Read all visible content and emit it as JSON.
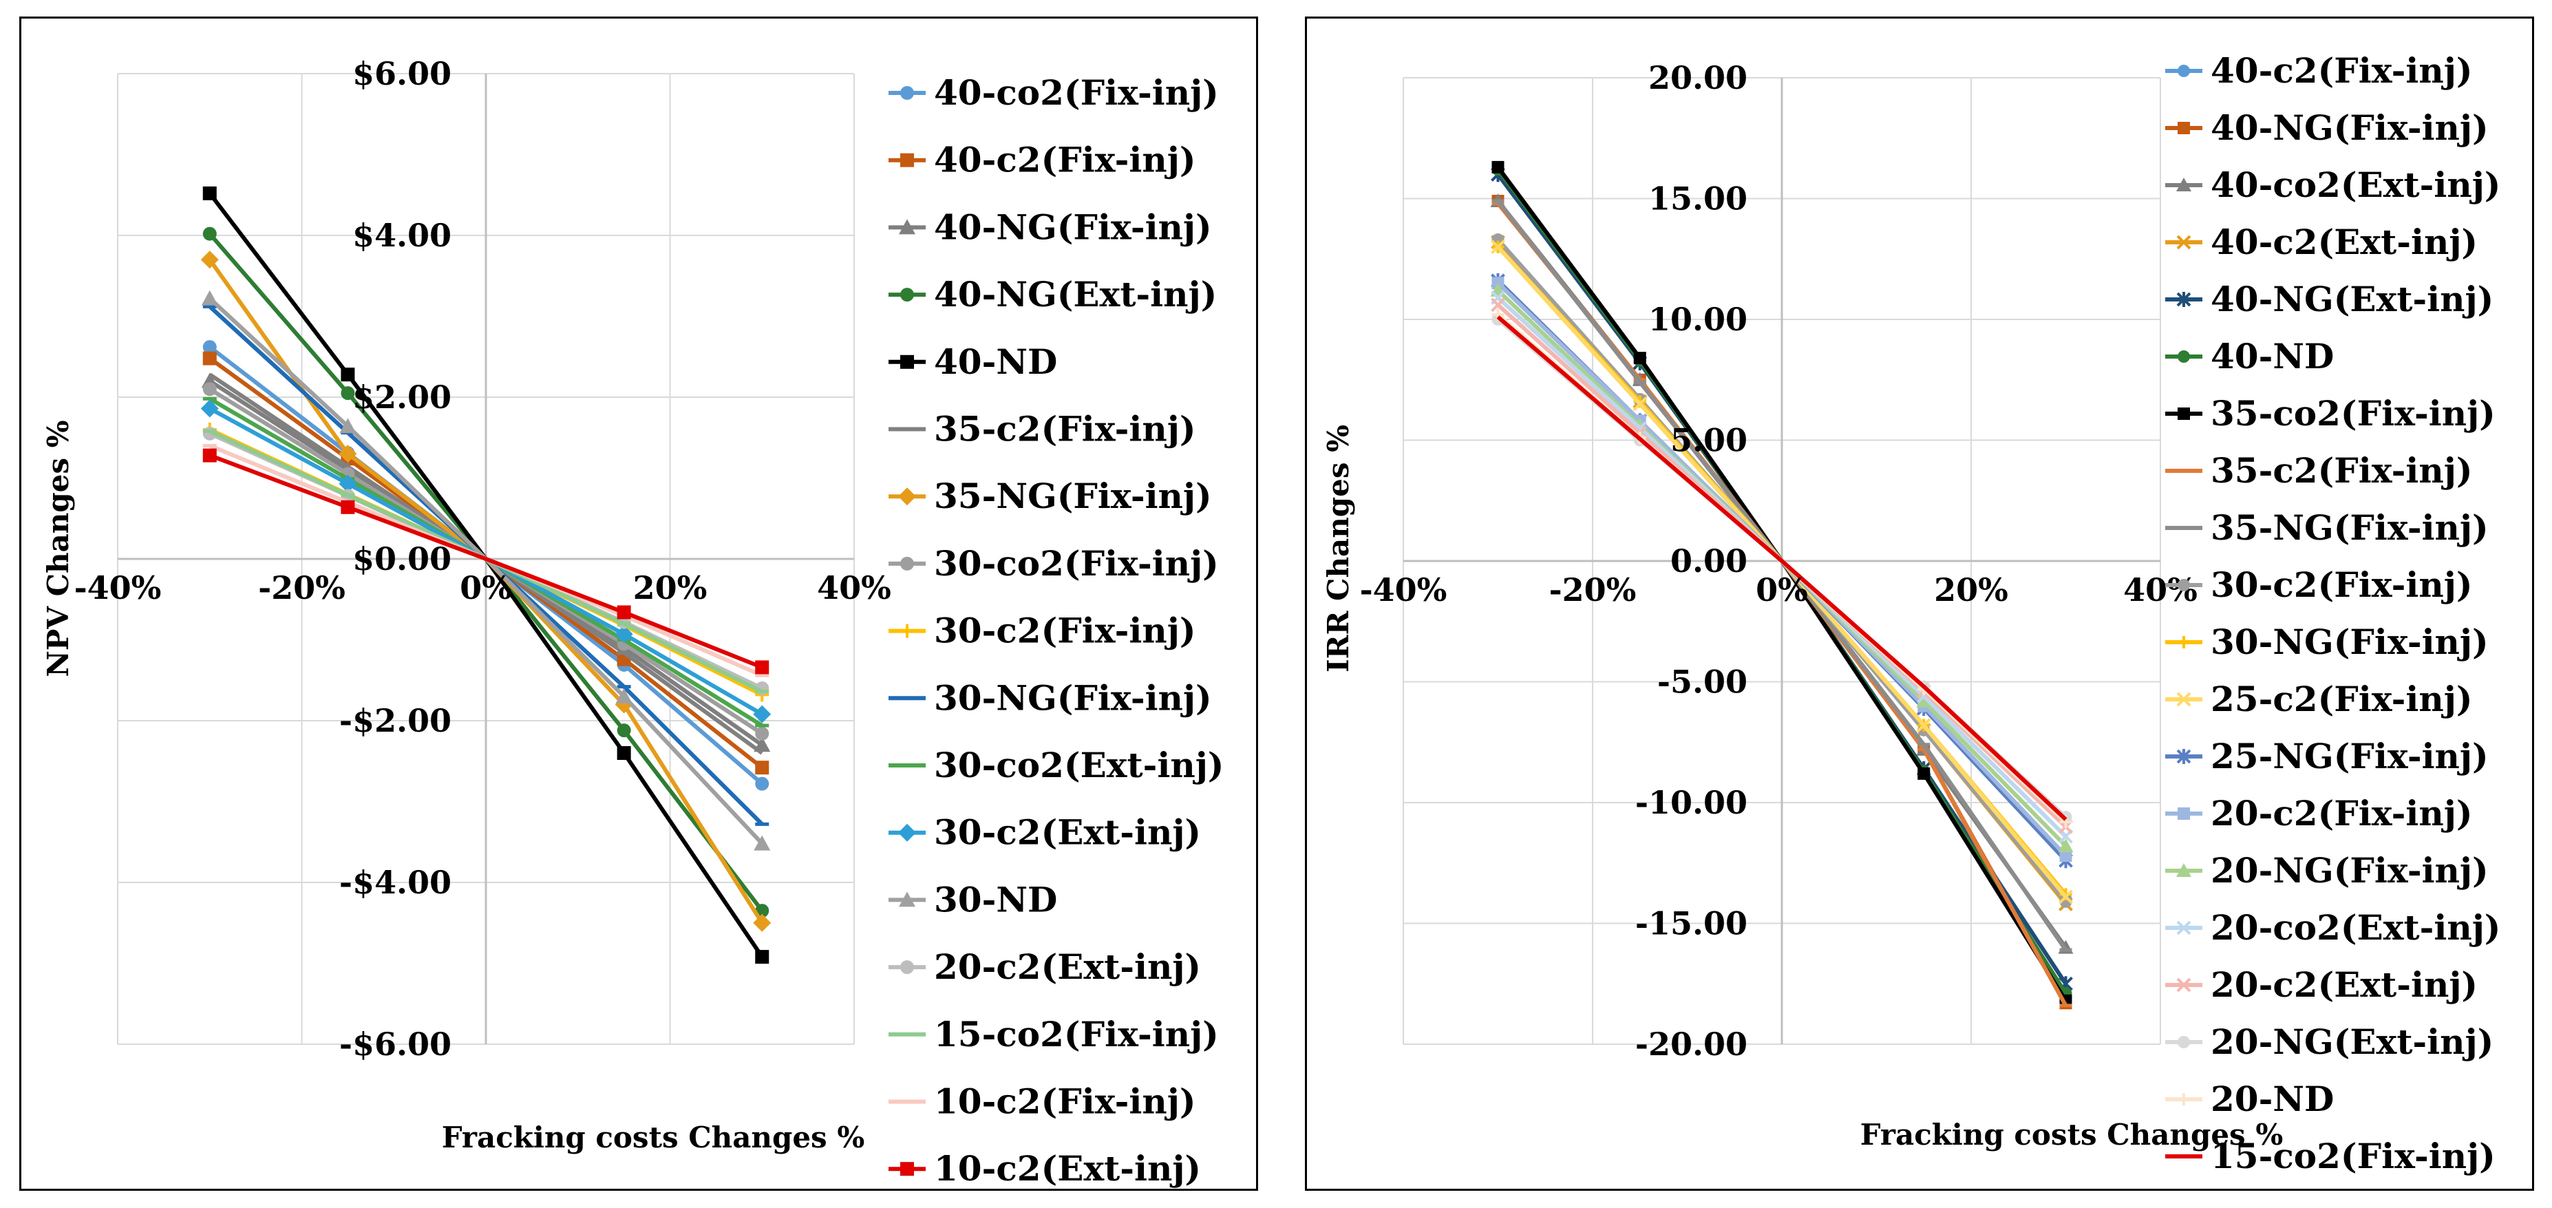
{
  "chart_data": [
    {
      "type": "line",
      "xlabel": "Fracking costs Changes %",
      "ylabel": "NPV Changes %",
      "xlim": [
        -0.4,
        0.4
      ],
      "ylim": [
        -6,
        6
      ],
      "x_ticks": [
        "-40%",
        "-20%",
        "0%",
        "20%",
        "40%"
      ],
      "y_ticks": [
        "$6.00",
        "$4.00",
        "$2.00",
        "$0.00",
        "-$2.00",
        "-$4.00",
        "-$6.00"
      ],
      "grid": true,
      "legend_position": "right",
      "x": [
        -0.3,
        -0.15,
        0,
        0.15,
        0.3
      ],
      "series": [
        {
          "name": "40-co2(Fix-inj)",
          "color": "#5B9BD5",
          "marker": "circle",
          "values": [
            2.62,
            1.31,
            0,
            -1.31,
            -2.78
          ]
        },
        {
          "name": "40-c2(Fix-inj)",
          "color": "#C55A11",
          "marker": "square",
          "values": [
            2.48,
            1.24,
            0,
            -1.24,
            -2.58
          ]
        },
        {
          "name": "40-NG(Fix-inj)",
          "color": "#7F7F7F",
          "marker": "triangle",
          "values": [
            2.2,
            1.1,
            0,
            -1.1,
            -2.3
          ]
        },
        {
          "name": "40-NG(Ext-inj)",
          "color": "#2E7D32",
          "marker": "circle",
          "values": [
            4.02,
            2.05,
            0,
            -2.12,
            -4.35
          ]
        },
        {
          "name": "40-ND",
          "color": "#000000",
          "marker": "square",
          "values": [
            4.52,
            2.28,
            0,
            -2.4,
            -4.92
          ]
        },
        {
          "name": "35-c2(Fix-inj)",
          "color": "#808080",
          "marker": "none",
          "values": [
            2.28,
            1.14,
            0,
            -1.16,
            -2.4
          ]
        },
        {
          "name": "35-NG(Fix-inj)",
          "color": "#E69C1A",
          "marker": "diamond",
          "values": [
            3.7,
            1.3,
            0,
            -1.8,
            -4.5
          ]
        },
        {
          "name": "30-co2(Fix-inj)",
          "color": "#9E9E9E",
          "marker": "circle",
          "values": [
            2.1,
            1.05,
            0,
            -1.05,
            -2.16
          ]
        },
        {
          "name": "30-c2(Fix-inj)",
          "color": "#FFC000",
          "marker": "plus",
          "values": [
            1.6,
            0.8,
            0,
            -0.82,
            -1.68
          ]
        },
        {
          "name": "30-NG(Fix-inj)",
          "color": "#1F6CB5",
          "marker": "dash",
          "values": [
            3.12,
            1.56,
            0,
            -1.58,
            -3.28
          ]
        },
        {
          "name": "30-co2(Ext-inj)",
          "color": "#4CA64C",
          "marker": "dash",
          "values": [
            1.98,
            0.99,
            0,
            -1.0,
            -2.06
          ]
        },
        {
          "name": "30-c2(Ext-inj)",
          "color": "#2E9FD6",
          "marker": "diamond",
          "values": [
            1.86,
            0.93,
            0,
            -0.93,
            -1.92
          ]
        },
        {
          "name": "30-ND",
          "color": "#A0A0A0",
          "marker": "triangle",
          "values": [
            3.22,
            1.64,
            0,
            -1.7,
            -3.52
          ]
        },
        {
          "name": "20-c2(Ext-inj)",
          "color": "#BDBDBD",
          "marker": "circle",
          "values": [
            1.55,
            0.78,
            0,
            -0.78,
            -1.6
          ]
        },
        {
          "name": "15-co2(Fix-inj)",
          "color": "#8FCB8F",
          "marker": "dash",
          "values": [
            1.58,
            0.79,
            0,
            -0.8,
            -1.64
          ]
        },
        {
          "name": "10-c2(Fix-inj)",
          "color": "#F8C9C0",
          "marker": "dash",
          "values": [
            1.4,
            0.7,
            0,
            -0.7,
            -1.44
          ]
        },
        {
          "name": "10-c2(Ext-inj)",
          "color": "#E00000",
          "marker": "square",
          "values": [
            1.28,
            0.64,
            0,
            -0.66,
            -1.34
          ]
        }
      ]
    },
    {
      "type": "line",
      "xlabel": "Fracking costs Changes %",
      "ylabel": "IRR Changes %",
      "xlim": [
        -0.4,
        0.4
      ],
      "ylim": [
        -20,
        20
      ],
      "x_ticks": [
        "-40%",
        "-20%",
        "0%",
        "20%",
        "40%"
      ],
      "y_ticks": [
        "20.00",
        "15.00",
        "10.00",
        "5.00",
        "0.00",
        "-5.00",
        "-10.00",
        "-15.00",
        "-20.00"
      ],
      "grid": true,
      "legend_position": "right",
      "x": [
        -0.3,
        -0.15,
        0,
        0.15,
        0.3
      ],
      "series": [
        {
          "name": "40-c2(Fix-inj)",
          "color": "#5B9BD5",
          "marker": "circle",
          "values": [
            13.3,
            6.65,
            0,
            -7.0,
            -14.0
          ]
        },
        {
          "name": "40-NG(Fix-inj)",
          "color": "#C55A11",
          "marker": "square",
          "values": [
            14.9,
            7.5,
            0,
            -7.8,
            -18.3
          ]
        },
        {
          "name": "40-co2(Ext-inj)",
          "color": "#7F7F7F",
          "marker": "triangle",
          "values": [
            14.9,
            7.5,
            0,
            -7.8,
            -16.0
          ]
        },
        {
          "name": "40-c2(Ext-inj)",
          "color": "#E69C1A",
          "marker": "x",
          "values": [
            13.2,
            6.6,
            0,
            -7.0,
            -14.2
          ]
        },
        {
          "name": "40-NG(Ext-inj)",
          "color": "#1F4E79",
          "marker": "star",
          "values": [
            16.0,
            8.2,
            0,
            -8.6,
            -17.5
          ]
        },
        {
          "name": "40-ND",
          "color": "#2E7D32",
          "marker": "circle",
          "values": [
            16.2,
            8.3,
            0,
            -8.7,
            -17.9
          ]
        },
        {
          "name": "35-co2(Fix-inj)",
          "color": "#000000",
          "marker": "square",
          "values": [
            16.3,
            8.4,
            0,
            -8.8,
            -18.2
          ]
        },
        {
          "name": "35-c2(Fix-inj)",
          "color": "#E07B39",
          "marker": "dash",
          "values": [
            14.8,
            7.5,
            0,
            -7.8,
            -18.4
          ]
        },
        {
          "name": "35-NG(Fix-inj)",
          "color": "#8C8C8C",
          "marker": "dash",
          "values": [
            14.9,
            7.4,
            0,
            -7.6,
            -16.1
          ]
        },
        {
          "name": "30-c2(Fix-inj)",
          "color": "#9E9E9E",
          "marker": "circle",
          "values": [
            13.3,
            6.7,
            0,
            -7.0,
            -14.1
          ]
        },
        {
          "name": "30-NG(Fix-inj)",
          "color": "#FFC000",
          "marker": "plus",
          "values": [
            13.0,
            6.6,
            0,
            -6.8,
            -13.8
          ]
        },
        {
          "name": "25-c2(Fix-inj)",
          "color": "#FFD966",
          "marker": "x",
          "values": [
            13.0,
            6.5,
            0,
            -6.8,
            -13.9
          ]
        },
        {
          "name": "25-NG(Fix-inj)",
          "color": "#5B7FC4",
          "marker": "star",
          "values": [
            11.6,
            5.8,
            0,
            -6.1,
            -12.4
          ]
        },
        {
          "name": "20-c2(Fix-inj)",
          "color": "#9DB7E0",
          "marker": "square",
          "values": [
            11.5,
            5.8,
            0,
            -6.0,
            -12.2
          ]
        },
        {
          "name": "20-NG(Fix-inj)",
          "color": "#A9D18E",
          "marker": "triangle",
          "values": [
            11.2,
            5.6,
            0,
            -5.8,
            -11.8
          ]
        },
        {
          "name": "20-co2(Ext-inj)",
          "color": "#BDD7EE",
          "marker": "x",
          "values": [
            10.9,
            5.5,
            0,
            -5.6,
            -11.4
          ]
        },
        {
          "name": "20-c2(Ext-inj)",
          "color": "#F4B6AE",
          "marker": "x",
          "values": [
            10.6,
            5.3,
            0,
            -5.4,
            -11.0
          ]
        },
        {
          "name": "20-NG(Ext-inj)",
          "color": "#D9D9D9",
          "marker": "circle",
          "values": [
            10.0,
            5.0,
            0,
            -5.2,
            -10.6
          ]
        },
        {
          "name": "20-ND",
          "color": "#FCE4CC",
          "marker": "plus",
          "values": [
            10.2,
            5.1,
            0,
            -5.3,
            -10.8
          ]
        },
        {
          "name": "15-co2(Fix-inj)",
          "color": "#E00000",
          "marker": "none",
          "values": [
            10.1,
            5.05,
            0,
            -5.2,
            -10.7
          ]
        }
      ]
    }
  ]
}
